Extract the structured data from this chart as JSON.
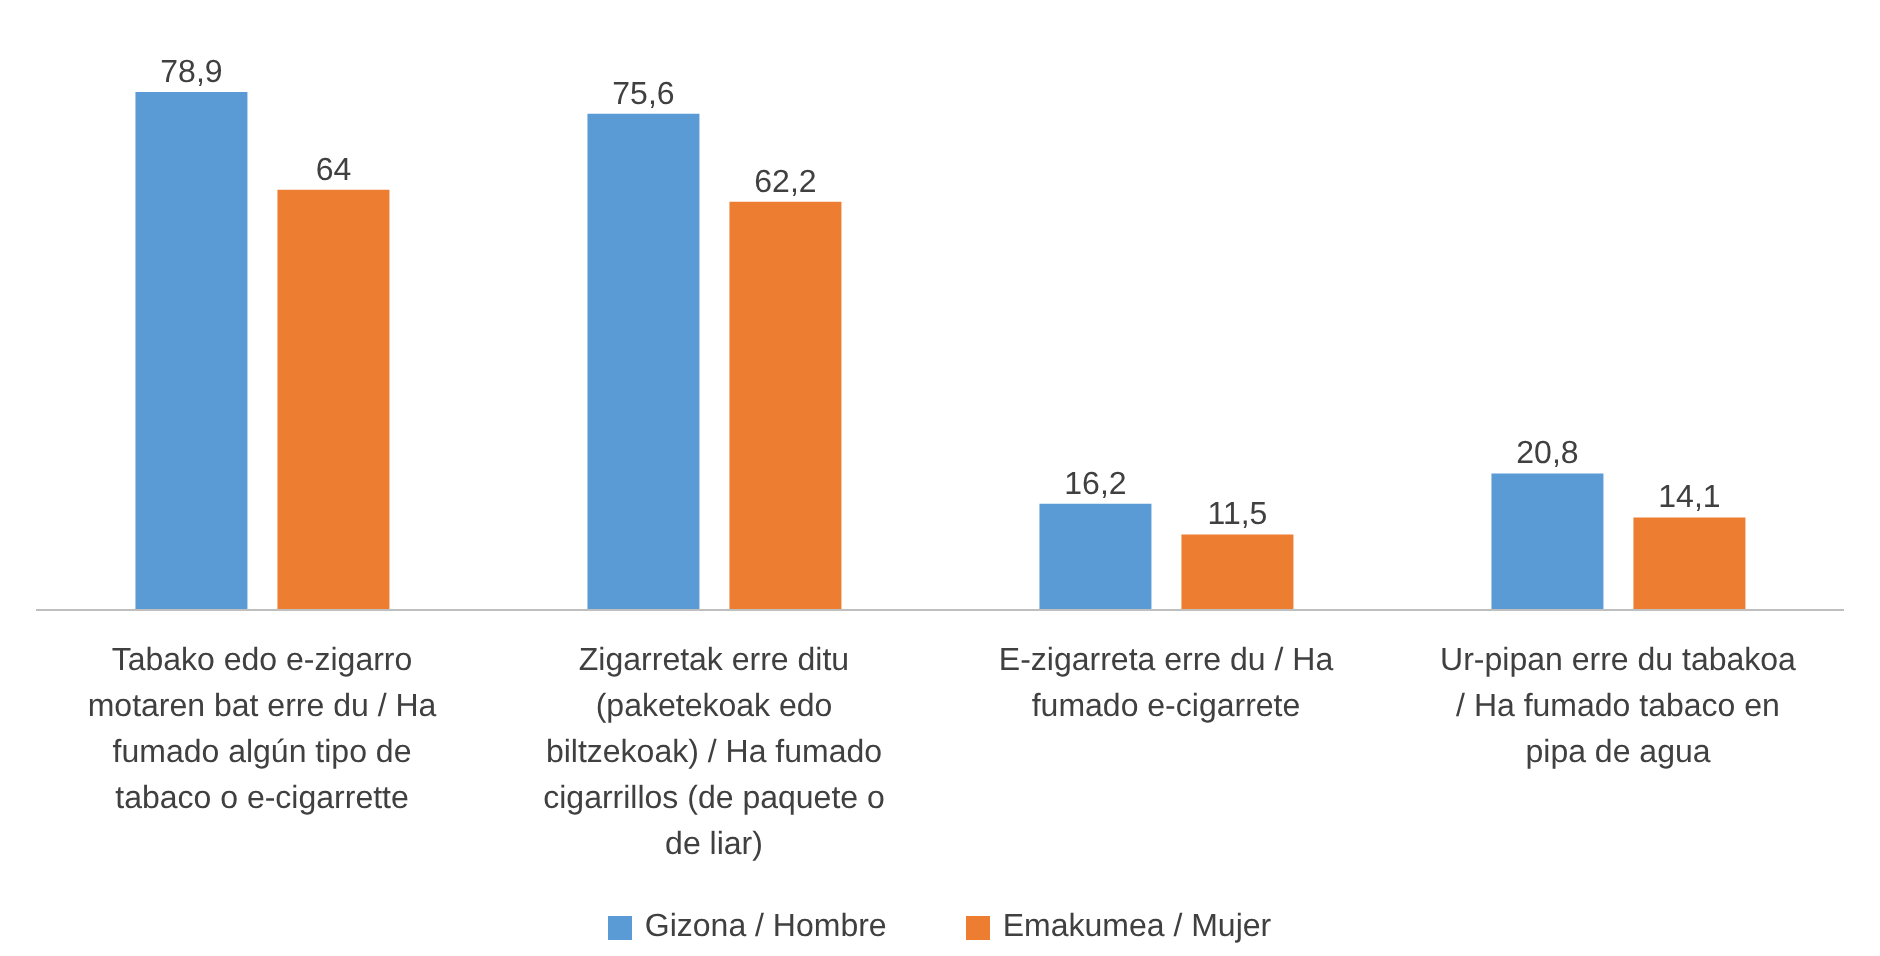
{
  "chart_data": {
    "type": "bar",
    "categories": [
      "Tabako edo e-zigarro motaren bat erre du / Ha fumado algún tipo de tabaco o e-cigarrette",
      "Zigarretak erre ditu (paketekoak edo biltzekoak) / Ha fumado cigarrillos (de paquete o de liar)",
      "E-zigarreta erre du / Ha fumado e-cigarrete",
      "Ur-pipan erre du tabakoa / Ha fumado tabaco en pipa de agua"
    ],
    "series": [
      {
        "name": "Gizona / Hombre",
        "color": "#5b9bd5",
        "values": [
          78.9,
          75.6,
          16.2,
          20.8
        ],
        "value_labels": [
          "78,9",
          "75,6",
          "16,2",
          "20,8"
        ]
      },
      {
        "name": "Emakumea / Mujer",
        "color": "#ed7d31",
        "values": [
          64,
          62.2,
          11.5,
          14.1
        ],
        "value_labels": [
          "64",
          "62,2",
          "11,5",
          "14,1"
        ]
      }
    ],
    "grid": false,
    "legend": "bottom"
  }
}
